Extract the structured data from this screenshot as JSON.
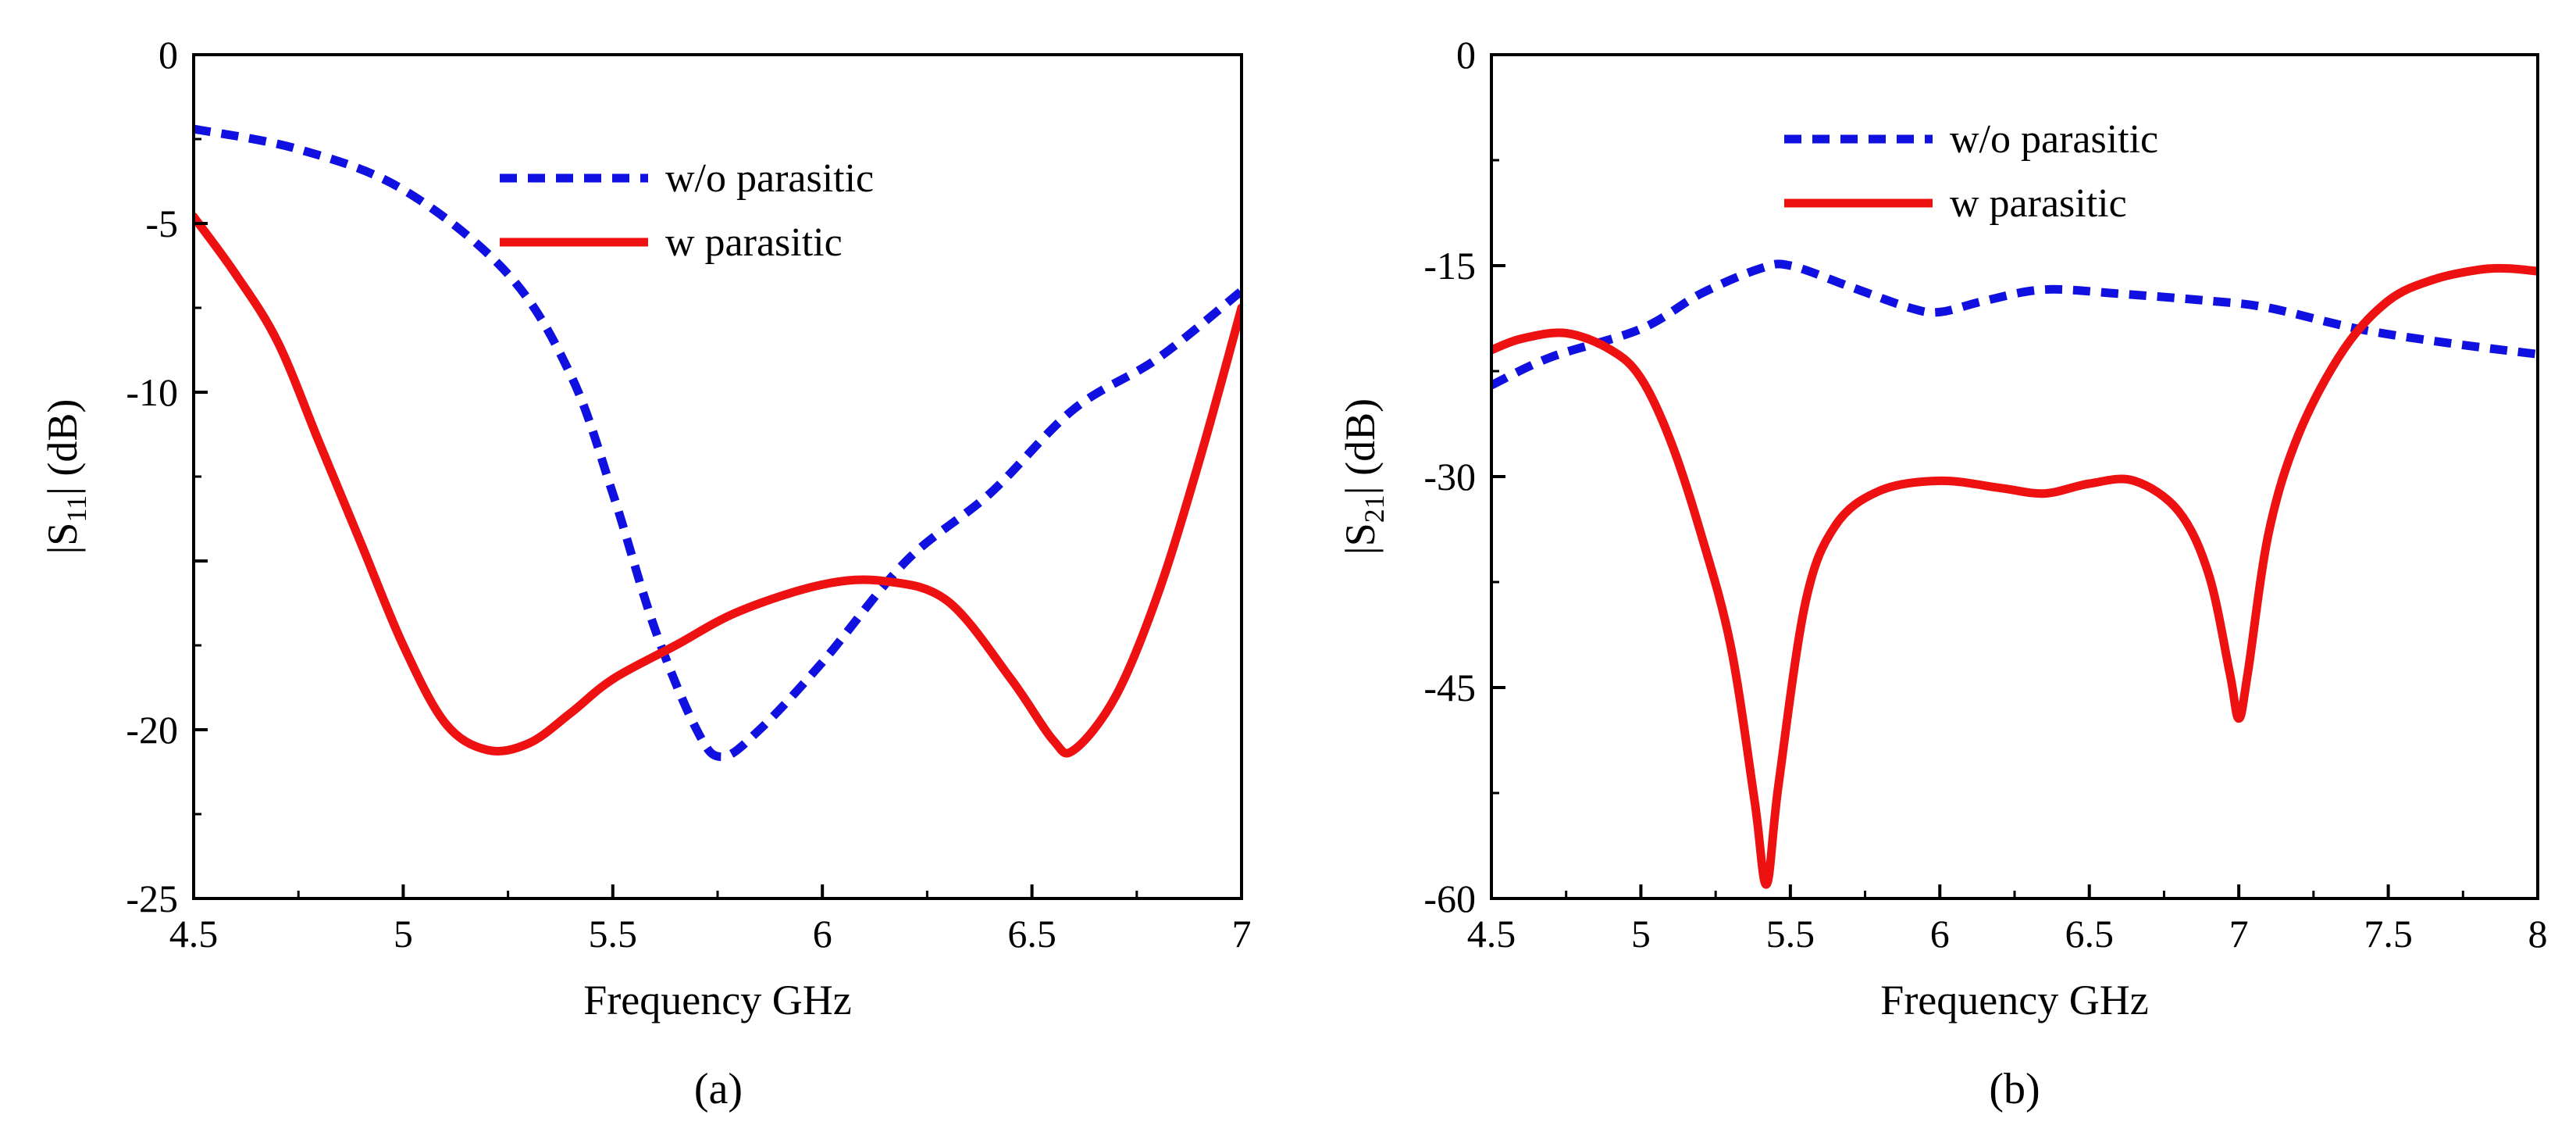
{
  "chart_data": [
    {
      "type": "line",
      "panel_label": "(a)",
      "xlabel": "Frequency GHz",
      "ylabel": {
        "prefix": "|S",
        "sub": "11",
        "suffix": "| (dB)"
      },
      "xlim": [
        4.5,
        7
      ],
      "ylim": [
        -25,
        0
      ],
      "xticks": [
        4.5,
        5,
        5.5,
        6,
        6.5,
        7
      ],
      "xtick_labels": [
        "4.5",
        "5",
        "5.5",
        "6",
        "6.5",
        "7"
      ],
      "yticks": [
        0,
        -5,
        -10,
        -20,
        -25
      ],
      "ytick_labels": [
        "0",
        "-5",
        "-10",
        "-20",
        "-25"
      ],
      "legend_position": "top-center",
      "series": [
        {
          "name": "w/o parasitic",
          "color": "#1010e0",
          "style": "dashed",
          "x": [
            4.5,
            4.75,
            5.0,
            5.25,
            5.4,
            5.5,
            5.6,
            5.7,
            5.76,
            5.85,
            6.0,
            6.2,
            6.4,
            6.6,
            6.8,
            7.0
          ],
          "y": [
            -2.2,
            -2.8,
            -4.0,
            -6.5,
            -9.5,
            -13.0,
            -17.0,
            -20.0,
            -20.8,
            -20.0,
            -18.0,
            -15.0,
            -13.0,
            -10.5,
            -9.0,
            -7.0
          ]
        },
        {
          "name": "w parasitic",
          "color": "#ee1111",
          "style": "solid",
          "x": [
            4.5,
            4.6,
            4.7,
            4.8,
            4.9,
            5.0,
            5.1,
            5.2,
            5.3,
            5.4,
            5.5,
            5.65,
            5.8,
            6.0,
            6.15,
            6.3,
            6.45,
            6.55,
            6.6,
            6.7,
            6.8,
            6.9,
            7.0
          ],
          "y": [
            -4.8,
            -6.5,
            -8.5,
            -11.5,
            -14.5,
            -17.5,
            -19.8,
            -20.6,
            -20.4,
            -19.5,
            -18.5,
            -17.5,
            -16.5,
            -15.7,
            -15.6,
            -16.2,
            -18.5,
            -20.3,
            -20.6,
            -19.0,
            -16.0,
            -12.0,
            -7.5
          ]
        }
      ]
    },
    {
      "type": "line",
      "panel_label": "(b)",
      "xlabel": "Frequency GHz",
      "ylabel": {
        "prefix": "|S",
        "sub": "21",
        "suffix": "| (dB)"
      },
      "xlim": [
        4.5,
        8
      ],
      "ylim": [
        -60,
        0
      ],
      "xticks": [
        4.5,
        5,
        5.5,
        6,
        6.5,
        7,
        7.5,
        8
      ],
      "xtick_labels": [
        "4.5",
        "5",
        "5.5",
        "6",
        "6.5",
        "7",
        "7.5",
        "8"
      ],
      "yticks": [
        0,
        -15,
        -30,
        -45,
        -60
      ],
      "ytick_labels": [
        "0",
        "-15",
        "-30",
        "-45",
        "-60"
      ],
      "legend_position": "top-center",
      "series": [
        {
          "name": "w/o parasitic",
          "color": "#1010e0",
          "style": "dashed",
          "x": [
            4.5,
            4.7,
            5.0,
            5.2,
            5.4,
            5.5,
            5.7,
            5.9,
            6.0,
            6.15,
            6.35,
            6.6,
            6.9,
            7.1,
            7.4,
            7.7,
            8.0
          ],
          "y": [
            -23.5,
            -21.5,
            -19.5,
            -17.0,
            -15.2,
            -15.0,
            -16.5,
            -18.0,
            -18.3,
            -17.5,
            -16.7,
            -17.0,
            -17.5,
            -18.0,
            -19.5,
            -20.5,
            -21.3
          ]
        },
        {
          "name": "w parasitic",
          "color": "#ee1111",
          "style": "solid",
          "x": [
            4.5,
            4.6,
            4.75,
            4.9,
            5.0,
            5.1,
            5.2,
            5.3,
            5.38,
            5.42,
            5.46,
            5.55,
            5.65,
            5.8,
            6.0,
            6.2,
            6.35,
            6.5,
            6.65,
            6.8,
            6.9,
            6.97,
            7.0,
            7.03,
            7.1,
            7.2,
            7.35,
            7.5,
            7.65,
            7.8,
            7.9,
            8.0
          ],
          "y": [
            -21.0,
            -20.2,
            -19.8,
            -21.0,
            -23.0,
            -27.5,
            -34.0,
            -42.0,
            -53.0,
            -59.0,
            -52.0,
            -39.0,
            -33.5,
            -31.0,
            -30.3,
            -30.8,
            -31.2,
            -30.5,
            -30.3,
            -32.5,
            -37.0,
            -44.0,
            -47.2,
            -44.0,
            -34.0,
            -27.0,
            -21.0,
            -17.5,
            -16.0,
            -15.3,
            -15.2,
            -15.4
          ]
        }
      ]
    }
  ]
}
